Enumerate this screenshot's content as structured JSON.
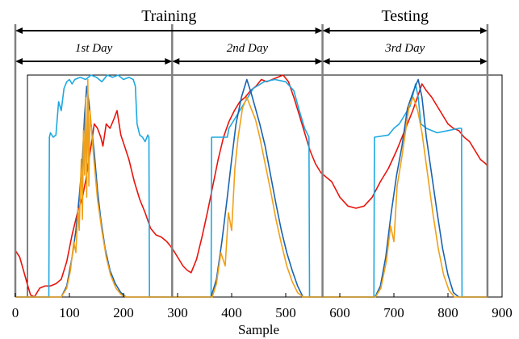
{
  "chart_data": {
    "type": "line",
    "title": "",
    "xlabel": "Sample",
    "ylabel": "",
    "xlim": [
      0,
      900
    ],
    "ylim": [
      0,
      1
    ],
    "grid": false,
    "legend": "none",
    "x_ticks": [
      "0",
      "100",
      "200",
      "300",
      "400",
      "500",
      "600",
      "700",
      "800",
      "900"
    ],
    "x_tick_values": [
      0,
      100,
      200,
      300,
      400,
      500,
      600,
      700,
      800,
      900
    ],
    "annotations": {
      "phases": [
        {
          "label": "Training",
          "from": 0,
          "to": 568
        },
        {
          "label": "Testing",
          "from": 568,
          "to": 873
        }
      ],
      "days": [
        {
          "label": "1st Day",
          "from": 0,
          "to": 290
        },
        {
          "label": "2nd Day",
          "from": 290,
          "to": 568
        },
        {
          "label": "3rd Day",
          "from": 568,
          "to": 873
        }
      ],
      "dividers_x": [
        0,
        290,
        568,
        873
      ]
    },
    "series": [
      {
        "color": "#e8140c",
        "points": [
          [
            0,
            0.21
          ],
          [
            8,
            0.18
          ],
          [
            15,
            0.12
          ],
          [
            22,
            0.06
          ],
          [
            28,
            0.01
          ],
          [
            35,
            0.0
          ],
          [
            45,
            0.04
          ],
          [
            55,
            0.05
          ],
          [
            65,
            0.05
          ],
          [
            75,
            0.06
          ],
          [
            85,
            0.08
          ],
          [
            95,
            0.16
          ],
          [
            105,
            0.28
          ],
          [
            115,
            0.38
          ],
          [
            125,
            0.46
          ],
          [
            132,
            0.55
          ],
          [
            140,
            0.68
          ],
          [
            146,
            0.78
          ],
          [
            152,
            0.76
          ],
          [
            158,
            0.72
          ],
          [
            162,
            0.68
          ],
          [
            168,
            0.78
          ],
          [
            175,
            0.76
          ],
          [
            182,
            0.8
          ],
          [
            188,
            0.84
          ],
          [
            195,
            0.73
          ],
          [
            202,
            0.68
          ],
          [
            210,
            0.62
          ],
          [
            220,
            0.52
          ],
          [
            230,
            0.44
          ],
          [
            240,
            0.38
          ],
          [
            250,
            0.31
          ],
          [
            260,
            0.28
          ],
          [
            270,
            0.27
          ],
          [
            280,
            0.25
          ],
          [
            290,
            0.22
          ],
          [
            300,
            0.18
          ],
          [
            310,
            0.14
          ],
          [
            318,
            0.12
          ],
          [
            325,
            0.11
          ],
          [
            335,
            0.17
          ],
          [
            345,
            0.27
          ],
          [
            355,
            0.38
          ],
          [
            365,
            0.5
          ],
          [
            375,
            0.62
          ],
          [
            385,
            0.72
          ],
          [
            395,
            0.79
          ],
          [
            405,
            0.84
          ],
          [
            415,
            0.88
          ],
          [
            425,
            0.9
          ],
          [
            435,
            0.93
          ],
          [
            445,
            0.95
          ],
          [
            455,
            0.98
          ],
          [
            465,
            0.97
          ],
          [
            475,
            0.98
          ],
          [
            485,
            0.99
          ],
          [
            495,
            1.0
          ],
          [
            505,
            0.97
          ],
          [
            515,
            0.9
          ],
          [
            525,
            0.82
          ],
          [
            535,
            0.74
          ],
          [
            545,
            0.66
          ],
          [
            555,
            0.6
          ],
          [
            565,
            0.56
          ],
          [
            575,
            0.54
          ],
          [
            585,
            0.52
          ],
          [
            600,
            0.45
          ],
          [
            615,
            0.41
          ],
          [
            630,
            0.4
          ],
          [
            645,
            0.41
          ],
          [
            660,
            0.45
          ],
          [
            675,
            0.52
          ],
          [
            690,
            0.58
          ],
          [
            705,
            0.66
          ],
          [
            720,
            0.75
          ],
          [
            735,
            0.84
          ],
          [
            745,
            0.91
          ],
          [
            752,
            0.96
          ],
          [
            760,
            0.93
          ],
          [
            770,
            0.9
          ],
          [
            780,
            0.86
          ],
          [
            790,
            0.82
          ],
          [
            800,
            0.78
          ],
          [
            810,
            0.76
          ],
          [
            820,
            0.75
          ],
          [
            830,
            0.72
          ],
          [
            840,
            0.7
          ],
          [
            850,
            0.66
          ],
          [
            860,
            0.62
          ],
          [
            870,
            0.6
          ],
          [
            873,
            0.59
          ]
        ]
      },
      {
        "color": "#1ea8e0",
        "points": [
          [
            0,
            0.0
          ],
          [
            62,
            0.0
          ],
          [
            63,
            0.72
          ],
          [
            65,
            0.74
          ],
          [
            70,
            0.72
          ],
          [
            75,
            0.73
          ],
          [
            80,
            0.88
          ],
          [
            85,
            0.84
          ],
          [
            90,
            0.94
          ],
          [
            95,
            0.97
          ],
          [
            100,
            0.98
          ],
          [
            105,
            0.96
          ],
          [
            110,
            0.98
          ],
          [
            120,
            0.99
          ],
          [
            130,
            0.98
          ],
          [
            140,
            1.0
          ],
          [
            150,
            0.99
          ],
          [
            160,
            0.97
          ],
          [
            170,
            1.0
          ],
          [
            180,
            0.99
          ],
          [
            190,
            1.0
          ],
          [
            200,
            0.98
          ],
          [
            210,
            0.99
          ],
          [
            218,
            0.98
          ],
          [
            222,
            0.95
          ],
          [
            225,
            0.78
          ],
          [
            230,
            0.73
          ],
          [
            235,
            0.72
          ],
          [
            240,
            0.7
          ],
          [
            245,
            0.73
          ],
          [
            247,
            0.72
          ],
          [
            248,
            0.0
          ],
          [
            362,
            0.0
          ],
          [
            363,
            0.72
          ],
          [
            392,
            0.72
          ],
          [
            395,
            0.76
          ],
          [
            405,
            0.8
          ],
          [
            420,
            0.86
          ],
          [
            440,
            0.94
          ],
          [
            460,
            0.97
          ],
          [
            480,
            0.98
          ],
          [
            500,
            0.97
          ],
          [
            515,
            0.93
          ],
          [
            525,
            0.84
          ],
          [
            535,
            0.76
          ],
          [
            543,
            0.72
          ],
          [
            544,
            0.0
          ],
          [
            663,
            0.0
          ],
          [
            664,
            0.72
          ],
          [
            690,
            0.73
          ],
          [
            700,
            0.76
          ],
          [
            710,
            0.78
          ],
          [
            720,
            0.82
          ],
          [
            730,
            0.86
          ],
          [
            740,
            0.96
          ],
          [
            745,
            0.9
          ],
          [
            750,
            0.78
          ],
          [
            760,
            0.76
          ],
          [
            780,
            0.74
          ],
          [
            800,
            0.75
          ],
          [
            820,
            0.76
          ],
          [
            825,
            0.76
          ],
          [
            826,
            0.0
          ],
          [
            873,
            0.0
          ]
        ]
      },
      {
        "color": "#1a63b0",
        "points": [
          [
            0,
            0.0
          ],
          [
            85,
            0.0
          ],
          [
            95,
            0.05
          ],
          [
            105,
            0.18
          ],
          [
            112,
            0.3
          ],
          [
            118,
            0.45
          ],
          [
            124,
            0.62
          ],
          [
            128,
            0.82
          ],
          [
            132,
            0.95
          ],
          [
            136,
            0.88
          ],
          [
            140,
            0.78
          ],
          [
            146,
            0.65
          ],
          [
            152,
            0.48
          ],
          [
            158,
            0.35
          ],
          [
            166,
            0.22
          ],
          [
            175,
            0.12
          ],
          [
            185,
            0.06
          ],
          [
            195,
            0.02
          ],
          [
            205,
            0.0
          ],
          [
            250,
            0.0
          ],
          [
            362,
            0.0
          ],
          [
            372,
            0.08
          ],
          [
            382,
            0.25
          ],
          [
            392,
            0.45
          ],
          [
            400,
            0.62
          ],
          [
            408,
            0.78
          ],
          [
            418,
            0.9
          ],
          [
            428,
            0.98
          ],
          [
            436,
            0.92
          ],
          [
            444,
            0.85
          ],
          [
            452,
            0.78
          ],
          [
            462,
            0.68
          ],
          [
            472,
            0.55
          ],
          [
            482,
            0.42
          ],
          [
            492,
            0.3
          ],
          [
            502,
            0.2
          ],
          [
            512,
            0.12
          ],
          [
            522,
            0.05
          ],
          [
            532,
            0.0
          ],
          [
            544,
            0.0
          ],
          [
            665,
            0.0
          ],
          [
            675,
            0.05
          ],
          [
            685,
            0.18
          ],
          [
            695,
            0.38
          ],
          [
            705,
            0.55
          ],
          [
            715,
            0.68
          ],
          [
            725,
            0.85
          ],
          [
            735,
            0.92
          ],
          [
            745,
            0.98
          ],
          [
            752,
            0.9
          ],
          [
            760,
            0.72
          ],
          [
            770,
            0.55
          ],
          [
            780,
            0.38
          ],
          [
            790,
            0.22
          ],
          [
            800,
            0.1
          ],
          [
            810,
            0.02
          ],
          [
            820,
            0.0
          ],
          [
            873,
            0.0
          ]
        ]
      },
      {
        "color": "#f0a018",
        "points": [
          [
            0,
            0.0
          ],
          [
            85,
            0.0
          ],
          [
            95,
            0.04
          ],
          [
            102,
            0.12
          ],
          [
            108,
            0.25
          ],
          [
            112,
            0.2
          ],
          [
            116,
            0.4
          ],
          [
            118,
            0.3
          ],
          [
            122,
            0.62
          ],
          [
            124,
            0.35
          ],
          [
            126,
            0.75
          ],
          [
            128,
            0.55
          ],
          [
            130,
            0.9
          ],
          [
            132,
            0.45
          ],
          [
            134,
            0.98
          ],
          [
            136,
            0.5
          ],
          [
            138,
            0.84
          ],
          [
            140,
            0.78
          ],
          [
            146,
            0.6
          ],
          [
            152,
            0.44
          ],
          [
            160,
            0.3
          ],
          [
            168,
            0.18
          ],
          [
            176,
            0.1
          ],
          [
            186,
            0.04
          ],
          [
            196,
            0.01
          ],
          [
            206,
            0.0
          ],
          [
            250,
            0.0
          ],
          [
            364,
            0.0
          ],
          [
            372,
            0.06
          ],
          [
            380,
            0.2
          ],
          [
            388,
            0.14
          ],
          [
            394,
            0.38
          ],
          [
            400,
            0.3
          ],
          [
            406,
            0.58
          ],
          [
            412,
            0.72
          ],
          [
            420,
            0.85
          ],
          [
            428,
            0.9
          ],
          [
            436,
            0.85
          ],
          [
            444,
            0.8
          ],
          [
            452,
            0.72
          ],
          [
            462,
            0.6
          ],
          [
            472,
            0.48
          ],
          [
            482,
            0.35
          ],
          [
            492,
            0.24
          ],
          [
            502,
            0.14
          ],
          [
            512,
            0.07
          ],
          [
            522,
            0.02
          ],
          [
            532,
            0.0
          ],
          [
            544,
            0.0
          ],
          [
            666,
            0.0
          ],
          [
            676,
            0.04
          ],
          [
            686,
            0.16
          ],
          [
            694,
            0.32
          ],
          [
            700,
            0.25
          ],
          [
            706,
            0.5
          ],
          [
            714,
            0.62
          ],
          [
            720,
            0.72
          ],
          [
            728,
            0.86
          ],
          [
            736,
            0.9
          ],
          [
            744,
            0.84
          ],
          [
            752,
            0.74
          ],
          [
            762,
            0.56
          ],
          [
            772,
            0.38
          ],
          [
            782,
            0.22
          ],
          [
            792,
            0.1
          ],
          [
            802,
            0.03
          ],
          [
            812,
            0.0
          ],
          [
            873,
            0.0
          ]
        ]
      }
    ]
  }
}
